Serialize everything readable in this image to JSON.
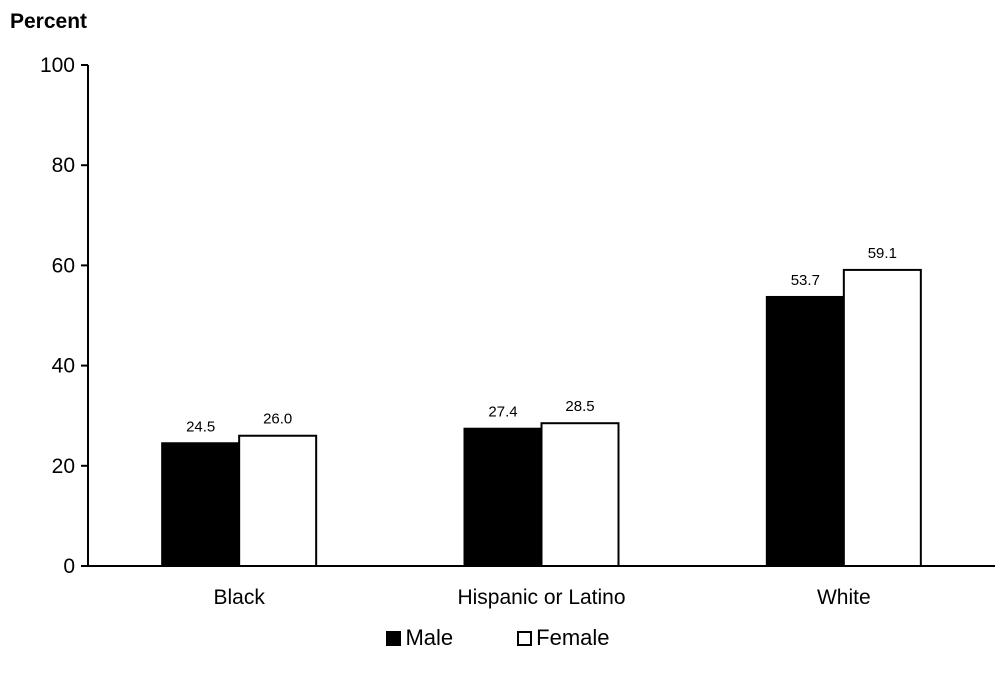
{
  "chart_data": {
    "type": "bar",
    "ylabel": "Percent",
    "ylim": [
      0,
      100
    ],
    "yticks": [
      0,
      20,
      40,
      60,
      80,
      100
    ],
    "categories": [
      "Black",
      "Hispanic or Latino",
      "White"
    ],
    "series": [
      {
        "name": "Male",
        "values": [
          24.5,
          27.4,
          53.7
        ],
        "labels": [
          "24.5",
          "27.4",
          "53.7"
        ],
        "color": "#000000"
      },
      {
        "name": "Female",
        "values": [
          26.0,
          28.5,
          59.1
        ],
        "labels": [
          "26.0",
          "28.5",
          "59.1"
        ],
        "color": "#ffffff"
      }
    ],
    "legend_position": "bottom"
  }
}
